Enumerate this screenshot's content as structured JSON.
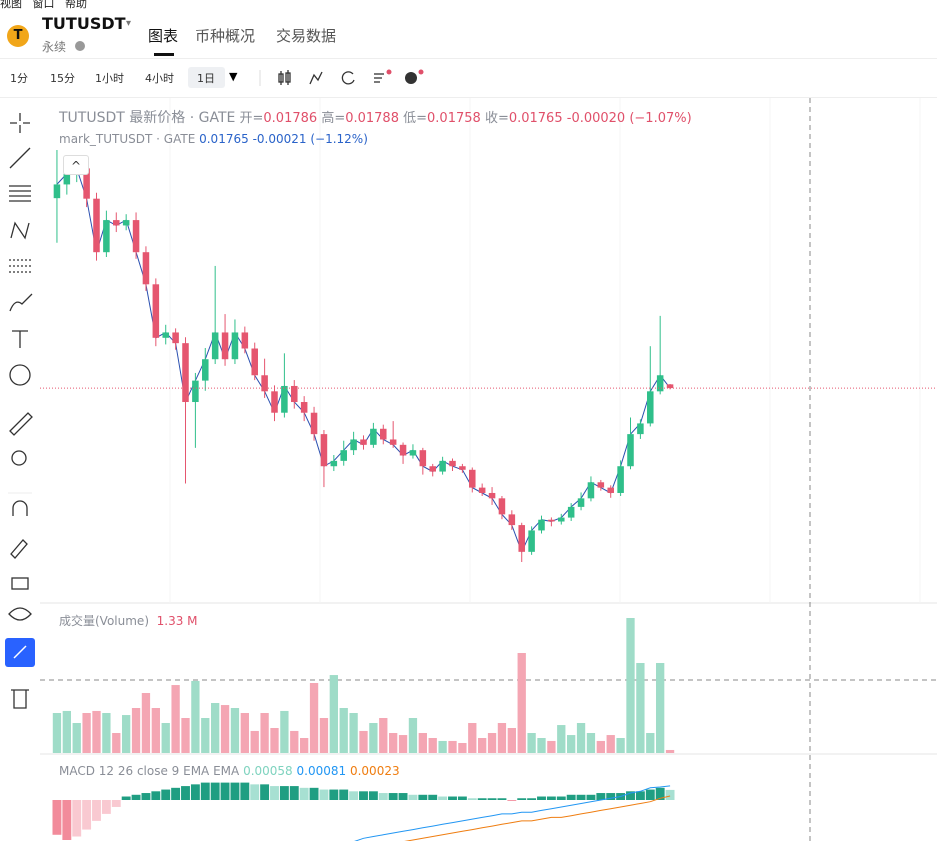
{
  "menu": [
    "视图",
    "窗口",
    "帮助"
  ],
  "symbol": {
    "logo": "T",
    "name": "TUTUSDT",
    "kind": "永续"
  },
  "tabs": [
    "图表",
    "币种概况",
    "交易数据"
  ],
  "intervals": [
    "1分",
    "15分",
    "1小时",
    "4小时",
    "1日"
  ],
  "legend": {
    "title": "TUTUSDT 最新价格 · GATE",
    "ohlc": [
      {
        "label": "开=",
        "value": "0.01786"
      },
      {
        "label": "高=",
        "value": "0.01788"
      },
      {
        "label": "低=",
        "value": "0.01758"
      },
      {
        "label": "收=",
        "value": "0.01765"
      }
    ],
    "change": "-0.00020 (−1.07%)"
  },
  "mark_legend": {
    "title": "mark_TUTUSDT · GATE",
    "value": "0.01765",
    "change": "-0.00021 (−1.12%)"
  },
  "volume_legend": {
    "title": "成交量(Volume)",
    "value": "1.33 M"
  },
  "macd_legend": {
    "title": "MACD 12 26 close 9 EMA EMA",
    "values": [
      "0.00058",
      "0.00081",
      "0.00023"
    ]
  },
  "chart": {
    "candles": [
      [
        0.0283,
        0.031,
        0.0258,
        0.02907
      ],
      [
        0.02907,
        0.0303,
        0.0285,
        0.02967
      ],
      [
        0.02967,
        0.0305,
        0.0292,
        0.02997
      ],
      [
        0.02997,
        0.0301,
        0.0278,
        0.02827
      ],
      [
        0.02827,
        0.0286,
        0.0248,
        0.02527
      ],
      [
        0.02527,
        0.0276,
        0.025,
        0.02707
      ],
      [
        0.02707,
        0.0275,
        0.0264,
        0.02677
      ],
      [
        0.02677,
        0.0274,
        0.0265,
        0.02707
      ],
      [
        0.02707,
        0.0275,
        0.0249,
        0.02527
      ],
      [
        0.02527,
        0.0256,
        0.0231,
        0.02347
      ],
      [
        0.02347,
        0.0238,
        0.02,
        0.02047
      ],
      [
        0.02047,
        0.0212,
        0.0201,
        0.02077
      ],
      [
        0.02077,
        0.021,
        0.0198,
        0.02017
      ],
      [
        0.02017,
        0.0205,
        0.0123,
        0.01687
      ],
      [
        0.01687,
        0.0185,
        0.0143,
        0.01807
      ],
      [
        0.01807,
        0.0199,
        0.0175,
        0.01927
      ],
      [
        0.01927,
        0.0245,
        0.019,
        0.02077
      ],
      [
        0.02077,
        0.0218,
        0.0189,
        0.01927
      ],
      [
        0.01927,
        0.0215,
        0.019,
        0.02077
      ],
      [
        0.02077,
        0.0211,
        0.0196,
        0.01987
      ],
      [
        0.01987,
        0.0202,
        0.0181,
        0.01837
      ],
      [
        0.01837,
        0.0193,
        0.0171,
        0.01747
      ],
      [
        0.01747,
        0.0178,
        0.0158,
        0.01627
      ],
      [
        0.01627,
        0.0196,
        0.016,
        0.01777
      ],
      [
        0.01777,
        0.0181,
        0.0165,
        0.01687
      ],
      [
        0.01687,
        0.0172,
        0.0158,
        0.01627
      ],
      [
        0.01627,
        0.0166,
        0.0147,
        0.01507
      ],
      [
        0.01507,
        0.0153,
        0.0121,
        0.01327
      ],
      [
        0.01327,
        0.0139,
        0.013,
        0.01357
      ],
      [
        0.01357,
        0.0147,
        0.0133,
        0.01417
      ],
      [
        0.01417,
        0.0152,
        0.0139,
        0.01477
      ],
      [
        0.01477,
        0.015,
        0.0142,
        0.01447
      ],
      [
        0.01447,
        0.0157,
        0.0143,
        0.01537
      ],
      [
        0.01537,
        0.0156,
        0.0145,
        0.01477
      ],
      [
        0.01477,
        0.0158,
        0.0143,
        0.01447
      ],
      [
        0.01447,
        0.0146,
        0.0134,
        0.01387
      ],
      [
        0.01387,
        0.0145,
        0.0137,
        0.01417
      ],
      [
        0.01417,
        0.0143,
        0.0128,
        0.01327
      ],
      [
        0.01327,
        0.0134,
        0.0127,
        0.01297
      ],
      [
        0.01297,
        0.0138,
        0.0128,
        0.01357
      ],
      [
        0.01357,
        0.0137,
        0.013,
        0.01327
      ],
      [
        0.01327,
        0.0134,
        0.0129,
        0.01307
      ],
      [
        0.01307,
        0.0132,
        0.0118,
        0.01207
      ],
      [
        0.01207,
        0.0123,
        0.0116,
        0.01177
      ],
      [
        0.01177,
        0.0121,
        0.0111,
        0.01147
      ],
      [
        0.01147,
        0.0116,
        0.0103,
        0.01057
      ],
      [
        0.01057,
        0.0108,
        0.0097,
        0.00997
      ],
      [
        0.00997,
        0.0101,
        0.0079,
        0.00847
      ],
      [
        0.00847,
        0.0099,
        0.0083,
        0.00967
      ],
      [
        0.00967,
        0.0105,
        0.0095,
        0.01027
      ],
      [
        0.01027,
        0.0104,
        0.0099,
        0.01017
      ],
      [
        0.01017,
        0.0106,
        0.01,
        0.01039
      ],
      [
        0.01039,
        0.0112,
        0.0102,
        0.01099
      ],
      [
        0.01099,
        0.0118,
        0.0108,
        0.01147
      ],
      [
        0.01147,
        0.0127,
        0.0113,
        0.01237
      ],
      [
        0.01237,
        0.0125,
        0.0119,
        0.01207
      ],
      [
        0.01207,
        0.0122,
        0.0115,
        0.01177
      ],
      [
        0.01177,
        0.0136,
        0.0116,
        0.01327
      ],
      [
        0.01327,
        0.016,
        0.0131,
        0.01507
      ],
      [
        0.01507,
        0.0159,
        0.0148,
        0.01567
      ],
      [
        0.01567,
        0.02,
        0.0155,
        0.01747
      ],
      [
        0.01747,
        0.0217,
        0.0173,
        0.01837
      ],
      [
        0.01786,
        0.01788,
        0.01758,
        0.01765
      ]
    ],
    "volume": [
      17.6,
      18.5,
      13.2,
      17.6,
      18.5,
      17.6,
      8.8,
      16.7,
      19.8,
      26.4,
      19.8,
      13.2,
      29.9,
      15.4,
      31.7,
      15.4,
      22,
      21.1,
      19.8,
      17.6,
      9.7,
      17.6,
      11,
      18.5,
      9.7,
      6.6,
      30.8,
      15.4,
      34.3,
      19.8,
      17.6,
      9.7,
      13.2,
      15.4,
      8.8,
      7.9,
      15.4,
      8.8,
      6.6,
      5.3,
      5.3,
      4.4,
      13.2,
      6.6,
      8.8,
      13.2,
      11,
      44,
      8.8,
      6.6,
      5.3,
      12.3,
      7.9,
      13.2,
      8.8,
      5.3,
      7.9,
      6.6,
      59.4,
      39.6,
      8.8,
      39.6,
      1.33
    ],
    "macd": {
      "histogram": [
        -0.002,
        -0.0023,
        -0.0021,
        -0.0017,
        -0.0012,
        -0.0008,
        -0.0004,
        0.0002,
        0.0003,
        0.0004,
        0.0005,
        0.0006,
        0.0007,
        0.0008,
        0.0009,
        0.001,
        0.001,
        0.001,
        0.001,
        0.001,
        0.0009,
        0.0009,
        0.0008,
        0.0008,
        0.0008,
        0.0007,
        0.0007,
        0.0006,
        0.0006,
        0.0006,
        0.0005,
        0.0005,
        0.0005,
        0.0004,
        0.0004,
        0.0004,
        0.0003,
        0.0003,
        0.0003,
        0.0002,
        0.0002,
        0.0002,
        0.0001,
        0.0001,
        0.0001,
        0.0001,
        -5e-05,
        0.0001,
        0.0001,
        0.0002,
        0.0002,
        0.0002,
        0.0003,
        0.0003,
        0.0003,
        0.0004,
        0.0004,
        0.0004,
        0.0005,
        0.0005,
        0.0006,
        0.0007,
        0.00058
      ],
      "macd": [
        null,
        null,
        null,
        null,
        null,
        null,
        null,
        null,
        null,
        null,
        null,
        null,
        null,
        null,
        null,
        null,
        null,
        null,
        null,
        null,
        null,
        null,
        null,
        null,
        null,
        null,
        null,
        null,
        null,
        null,
        -0.0024,
        -0.0022,
        -0.0021,
        -0.002,
        -0.0019,
        -0.0018,
        -0.0017,
        -0.0016,
        -0.0015,
        -0.0014,
        -0.0013,
        -0.0012,
        -0.0011,
        -0.001,
        -0.0009,
        -0.0008,
        -0.0008,
        -0.0007,
        -0.0007,
        -0.0006,
        -0.0005,
        -0.0004,
        -0.0003,
        -0.0002,
        -0.0001,
        0,
        0.0001,
        0.0002,
        0.0004,
        0.0005,
        0.0007,
        0.00075,
        0.00081
      ],
      "signal": [
        null,
        null,
        null,
        null,
        null,
        null,
        null,
        null,
        null,
        null,
        null,
        null,
        null,
        null,
        null,
        null,
        null,
        null,
        null,
        null,
        null,
        null,
        null,
        null,
        null,
        null,
        null,
        null,
        null,
        null,
        -0.0032,
        -0.003,
        -0.0029,
        -0.0027,
        -0.0026,
        -0.0024,
        -0.0023,
        -0.0022,
        -0.0021,
        -0.002,
        -0.0019,
        -0.0018,
        -0.0017,
        -0.0016,
        -0.0015,
        -0.0014,
        -0.0013,
        -0.0012,
        -0.0012,
        -0.0011,
        -0.001,
        -0.001,
        -0.0009,
        -0.0008,
        -0.0007,
        -0.0006,
        -0.0005,
        -0.0004,
        -0.0003,
        -0.0002,
        -0.0001,
        0.0001,
        0.00023
      ]
    }
  }
}
